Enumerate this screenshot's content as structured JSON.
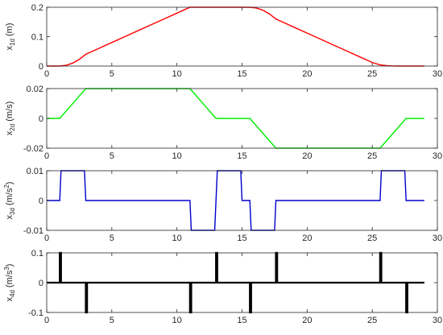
{
  "chart_data": [
    {
      "type": "line",
      "ylabel": {
        "base": "x",
        "sub": "1d",
        "sup": "",
        "unit": " (m)"
      },
      "xlim": [
        0,
        30
      ],
      "ylim": [
        0,
        0.2
      ],
      "xticks": [
        0,
        5,
        10,
        15,
        20,
        25,
        30
      ],
      "xtick_labels": [
        "0",
        "5",
        "10",
        "15",
        "20",
        "25",
        "30"
      ],
      "yticks": [
        0,
        0.1,
        0.2
      ],
      "ytick_labels": [
        "0",
        "0.1",
        "0.2"
      ],
      "grid": false,
      "series": [
        {
          "color": "#ff0000",
          "x": [
            0,
            1,
            1.5,
            2,
            2.5,
            3,
            4,
            5,
            6,
            7,
            8,
            9,
            10,
            11,
            11.5,
            12,
            12.5,
            13,
            14,
            15,
            15.6,
            16.1,
            16.6,
            17.1,
            17.6,
            18,
            19,
            20,
            21,
            22,
            23,
            24,
            25,
            25.6,
            26.1,
            26.6,
            27.1,
            27.6,
            29
          ],
          "y": [
            0,
            0,
            0.0025,
            0.01,
            0.0225,
            0.04,
            0.06,
            0.08,
            0.1,
            0.12,
            0.14,
            0.16,
            0.18,
            0.2,
            0.2,
            0.2,
            0.2,
            0.2,
            0.2,
            0.2,
            0.2,
            0.1975,
            0.19,
            0.1775,
            0.16,
            0.152,
            0.132,
            0.112,
            0.092,
            0.072,
            0.052,
            0.032,
            0.012,
            0.004,
            0.0015,
            0.0003,
            0,
            0,
            0
          ]
        }
      ]
    },
    {
      "type": "line",
      "ylabel": {
        "base": "x",
        "sub": "2d",
        "sup": "",
        "unit": " (m/s)"
      },
      "xlim": [
        0,
        30
      ],
      "ylim": [
        -0.02,
        0.02
      ],
      "xticks": [
        0,
        5,
        10,
        15,
        20,
        25,
        30
      ],
      "xtick_labels": [
        "0",
        "5",
        "10",
        "15",
        "20",
        "25",
        "30"
      ],
      "yticks": [
        -0.02,
        0,
        0.02
      ],
      "ytick_labels": [
        "-0.02",
        "0",
        "0.02"
      ],
      "grid": false,
      "series": [
        {
          "color": "#00ee00",
          "x": [
            0,
            1,
            3,
            11,
            13,
            15.6,
            17.6,
            25.6,
            27.6,
            29
          ],
          "y": [
            0,
            0,
            0.02,
            0.02,
            0,
            0,
            -0.02,
            -0.02,
            0,
            0
          ]
        }
      ]
    },
    {
      "type": "line",
      "ylabel": {
        "base": "x",
        "sub": "3d",
        "sup": "",
        "unit": " (m/s",
        "unit_sup": "2",
        "unit_end": ")"
      },
      "xlim": [
        0,
        30
      ],
      "ylim": [
        -0.01,
        0.01
      ],
      "xticks": [
        0,
        5,
        10,
        15,
        20,
        25,
        30
      ],
      "xtick_labels": [
        "0",
        "5",
        "10",
        "15",
        "20",
        "25",
        "30"
      ],
      "yticks": [
        -0.01,
        0,
        0.01
      ],
      "ytick_labels": [
        "-0.01",
        "0",
        "0.01"
      ],
      "grid": false,
      "series": [
        {
          "color": "#0000cc",
          "x": [
            0,
            1,
            1.1,
            2.9,
            3.0,
            11,
            11.1,
            12.9,
            13.0,
            13.1,
            14.9,
            15.0,
            15.6,
            15.7,
            17.5,
            17.6,
            25.6,
            25.7,
            27.5,
            27.6,
            29
          ],
          "y": [
            0,
            0,
            0.01,
            0.01,
            0,
            0,
            -0.01,
            -0.01,
            0,
            0.01,
            0.01,
            0,
            0,
            -0.01,
            -0.01,
            0,
            0,
            0.01,
            0.01,
            0,
            0
          ]
        }
      ]
    },
    {
      "type": "line",
      "ylabel": {
        "base": "x",
        "sub": "4d",
        "sup": "",
        "unit": " (m/s",
        "unit_sup": "3",
        "unit_end": ")"
      },
      "xlim": [
        0,
        30
      ],
      "ylim": [
        -0.1,
        0.1
      ],
      "xticks": [
        0,
        5,
        10,
        15,
        20,
        25,
        30
      ],
      "xtick_labels": [
        "0",
        "5",
        "10",
        "15",
        "20",
        "25",
        "30"
      ],
      "yticks": [
        -0.1,
        0,
        0.1
      ],
      "ytick_labels": [
        "-0.1",
        "0",
        "0.1"
      ],
      "grid": false,
      "series": [
        {
          "color": "#000000",
          "x": [
            0,
            1,
            1,
            1.1,
            1.1,
            3,
            3,
            3.1,
            3.1,
            11,
            11,
            11.1,
            11.1,
            13,
            13,
            13.1,
            13.1,
            15.6,
            15.6,
            15.7,
            15.7,
            17.6,
            17.6,
            17.7,
            17.7,
            25.6,
            25.6,
            25.7,
            25.7,
            27.6,
            27.6,
            27.7,
            27.7,
            29
          ],
          "y": [
            0,
            0,
            0.1,
            0.1,
            0,
            0,
            -0.1,
            -0.1,
            0,
            0,
            -0.1,
            -0.1,
            0,
            0,
            0.1,
            0.1,
            0,
            0,
            -0.1,
            -0.1,
            0,
            0,
            0.1,
            0.1,
            0,
            0,
            0.1,
            0.1,
            0,
            0,
            -0.1,
            -0.1,
            0,
            0
          ]
        }
      ]
    }
  ]
}
